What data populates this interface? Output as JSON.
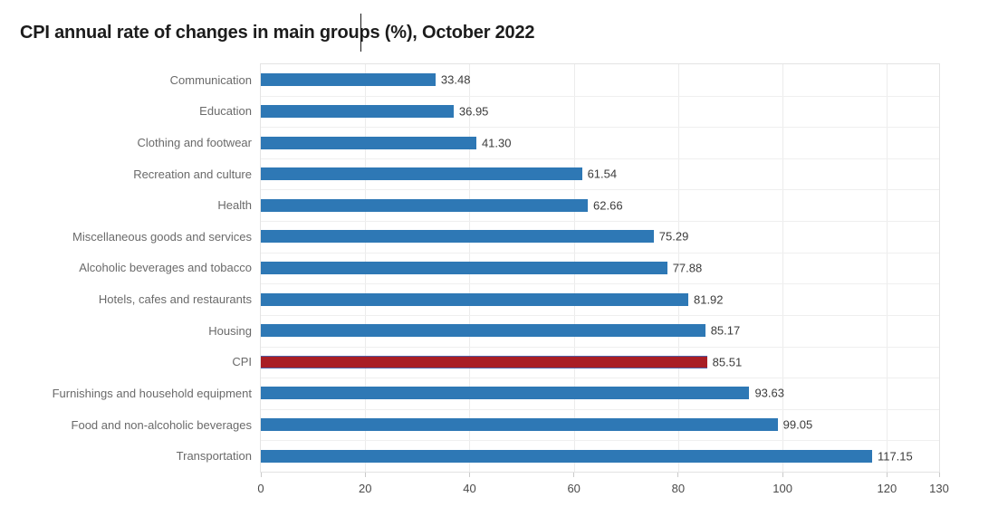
{
  "title": "CPI annual rate of changes in main groups (%), October 2022",
  "chart_data": {
    "type": "bar",
    "orientation": "horizontal",
    "title": "CPI annual rate of changes in main groups (%), October 2022",
    "categories": [
      "Communication",
      "Education",
      "Clothing and footwear",
      "Recreation and culture",
      "Health",
      "Miscellaneous goods and services",
      "Alcoholic beverages and tobacco",
      "Hotels, cafes and restaurants",
      "Housing",
      "CPI",
      "Furnishings and household equipment",
      "Food and non-alcoholic beverages",
      "Transportation"
    ],
    "values": [
      33.48,
      36.95,
      41.3,
      61.54,
      62.66,
      75.29,
      77.88,
      81.92,
      85.17,
      85.51,
      93.63,
      99.05,
      117.15
    ],
    "value_labels": [
      "33.48",
      "36.95",
      "41.30",
      "61.54",
      "62.66",
      "75.29",
      "77.88",
      "81.92",
      "85.17",
      "85.51",
      "93.63",
      "99.05",
      "117.15"
    ],
    "highlight_index": 9,
    "highlight_category": "CPI",
    "xlabel": "",
    "ylabel": "",
    "xlim": [
      0,
      130
    ],
    "xticks": [
      0,
      20,
      40,
      60,
      80,
      100,
      120,
      130
    ],
    "xtick_labels": [
      "0",
      "20",
      "40",
      "60",
      "80",
      "100",
      "120",
      "130"
    ],
    "grid": true,
    "legend": false,
    "colors": {
      "bar": "#2e78b5",
      "highlight_bar": "#a91e25",
      "highlight_bar_border": "#4f5fa5"
    }
  }
}
